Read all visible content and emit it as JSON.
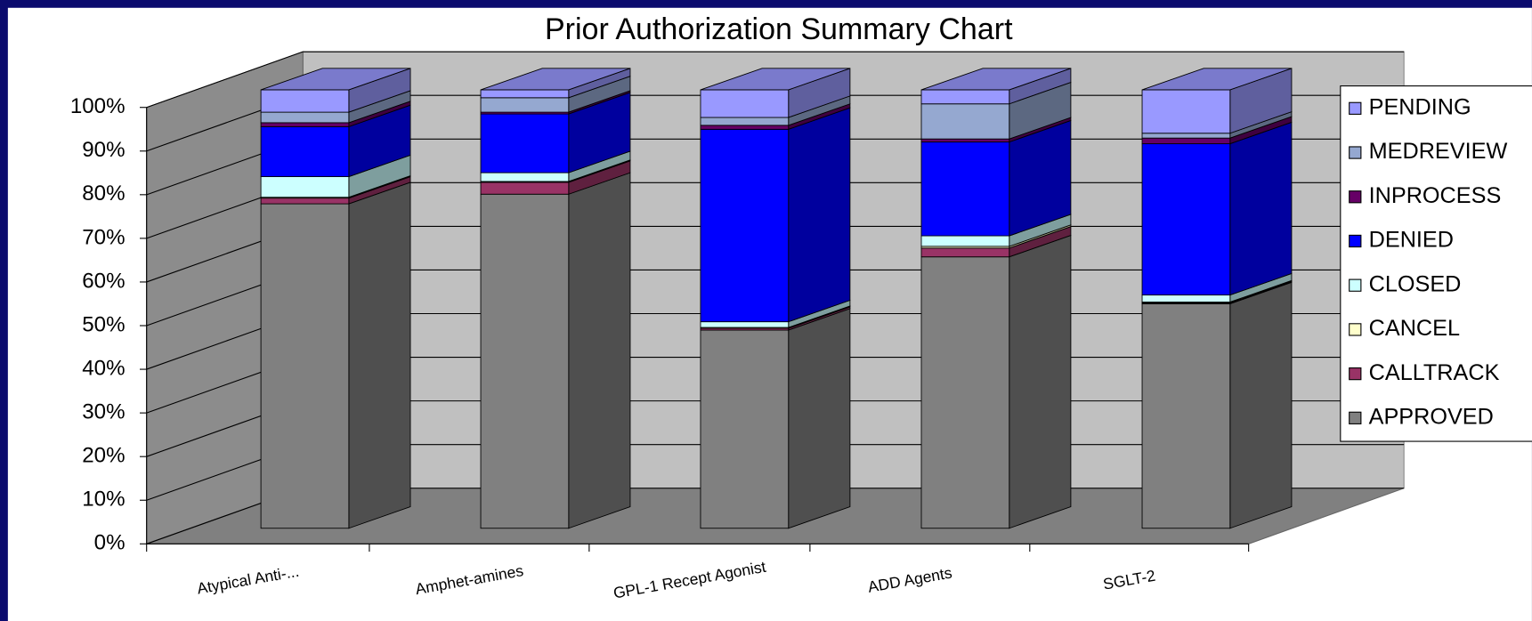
{
  "chart_data": {
    "type": "bar3d_stacked",
    "title": "Prior Authorization Summary Chart",
    "categories": [
      "Atypical Anti-...",
      "Amphet-amines",
      "GPL-1 Recept Agonist",
      "ADD Agents",
      "SGLT-2"
    ],
    "series": [
      {
        "name": "APPROVED",
        "color": "#808080",
        "values": [
          74.0,
          76.2,
          45.2,
          61.9,
          51.2
        ]
      },
      {
        "name": "CALLTRACK",
        "color": "#993366",
        "values": [
          1.3,
          2.7,
          0.4,
          2.0,
          0.2
        ]
      },
      {
        "name": "CANCEL",
        "color": "#ffffcc",
        "values": [
          0.2,
          0.2,
          0.2,
          0.4,
          0.2
        ]
      },
      {
        "name": "CLOSED",
        "color": "#ccffff",
        "values": [
          4.7,
          2.0,
          1.3,
          2.4,
          1.6
        ]
      },
      {
        "name": "DENIED",
        "color": "#0000ff",
        "values": [
          11.4,
          13.4,
          43.9,
          21.4,
          34.5
        ]
      },
      {
        "name": "INPROCESS",
        "color": "#660066",
        "values": [
          0.9,
          0.4,
          0.9,
          0.7,
          1.3
        ]
      },
      {
        "name": "MEDREVIEW",
        "color": "#95a8d0",
        "values": [
          2.4,
          3.3,
          1.8,
          8.0,
          1.1
        ]
      },
      {
        "name": "PENDING",
        "color": "#9999ff",
        "values": [
          5.1,
          1.8,
          6.3,
          3.2,
          9.9
        ]
      }
    ],
    "ylim": [
      0,
      100
    ],
    "yticks": [
      {
        "value": 0,
        "label": "0%"
      },
      {
        "value": 10,
        "label": "10%"
      },
      {
        "value": 20,
        "label": "20%"
      },
      {
        "value": 30,
        "label": "30%"
      },
      {
        "value": 40,
        "label": "40%"
      },
      {
        "value": 50,
        "label": "50%"
      },
      {
        "value": 60,
        "label": "60%"
      },
      {
        "value": 70,
        "label": "70%"
      },
      {
        "value": 80,
        "label": "80%"
      },
      {
        "value": 90,
        "label": "90%"
      },
      {
        "value": 100,
        "label": "100%"
      }
    ],
    "grid": true,
    "legend": "right"
  }
}
